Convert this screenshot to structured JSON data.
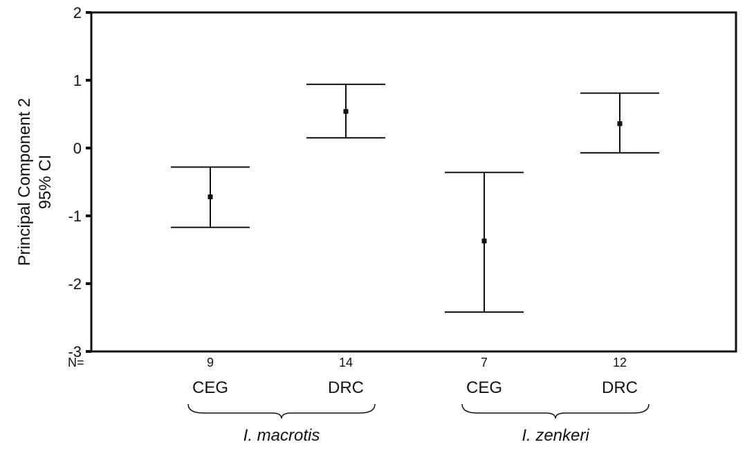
{
  "chart_data": {
    "type": "errorbar",
    "ylabel_line1": "Principal Component 2",
    "ylabel_line2": "95% CI",
    "ylim": [
      -3,
      2
    ],
    "yticks": [
      "2",
      "1",
      "0",
      "-1",
      "-2",
      "-3"
    ],
    "yticks_values": [
      2,
      1,
      0,
      -1,
      -2,
      -3
    ],
    "n_prefix": "N=",
    "categories": [
      "CEG",
      "DRC",
      "CEG",
      "DRC"
    ],
    "n_values": [
      "9",
      "14",
      "7",
      "12"
    ],
    "groups": [
      {
        "name": "I. macrotis",
        "members": [
          0,
          1
        ]
      },
      {
        "name": "I. zenkeri",
        "members": [
          2,
          3
        ]
      }
    ],
    "points": [
      {
        "category": "CEG",
        "n": 9,
        "mean": -0.72,
        "ci_low": -1.17,
        "ci_high": -0.28
      },
      {
        "category": "DRC",
        "n": 14,
        "mean": 0.54,
        "ci_low": 0.15,
        "ci_high": 0.94
      },
      {
        "category": "CEG",
        "n": 7,
        "mean": -1.37,
        "ci_low": -2.42,
        "ci_high": -0.36
      },
      {
        "category": "DRC",
        "n": 12,
        "mean": 0.36,
        "ci_low": -0.07,
        "ci_high": 0.81
      }
    ],
    "grid": false,
    "legend": "none"
  }
}
